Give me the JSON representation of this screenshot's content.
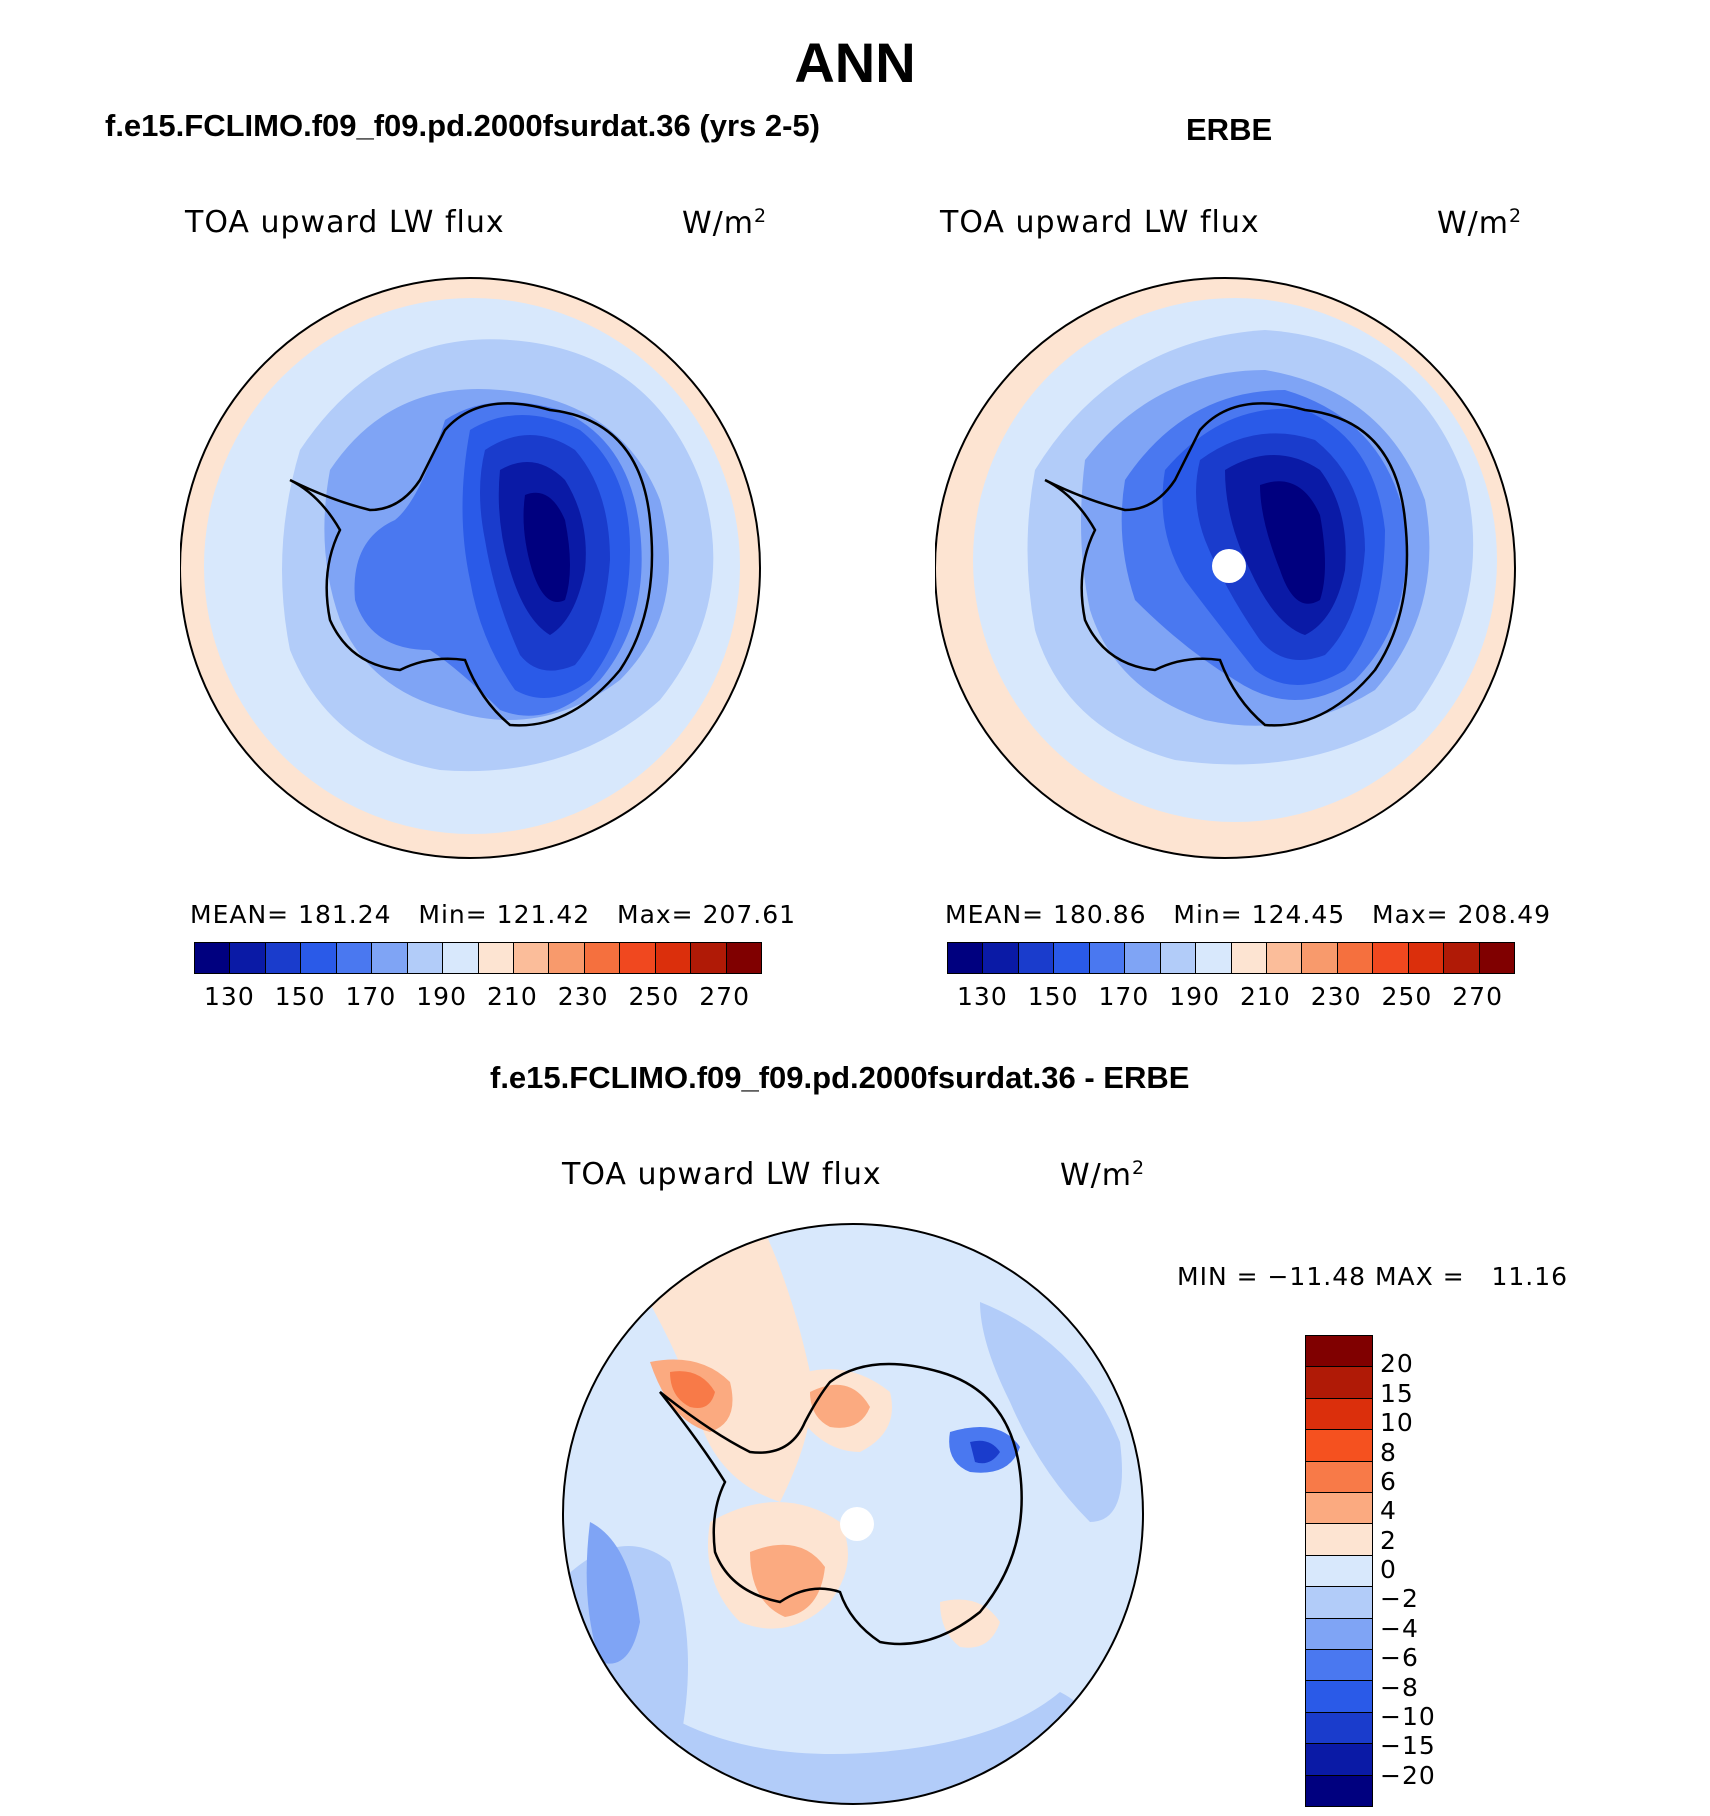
{
  "page": {
    "season": "ANN",
    "case_title": "f.e15.FCLIMO.f09_f09.pd.2000fsurdat.36 (yrs 2-5)",
    "obs_title": "ERBE",
    "diff_title": "f.e15.FCLIMO.f09_f09.pd.2000fsurdat.36 - ERBE"
  },
  "panels": [
    {
      "variable": "TOA upward LW flux",
      "units": "W/m",
      "units_exp": "2",
      "mean_label": "MEAN=",
      "mean": "181.24",
      "min_label": "Min=",
      "min": "121.42",
      "max_label": "Max=",
      "max": "207.61"
    },
    {
      "variable": "TOA upward LW flux",
      "units": "W/m",
      "units_exp": "2",
      "mean_label": "MEAN=",
      "mean": "180.86",
      "min_label": "Min=",
      "min": "124.45",
      "max_label": "Max=",
      "max": "208.49"
    }
  ],
  "diff_panel": {
    "variable": "TOA upward LW flux",
    "units": "W/m",
    "units_exp": "2",
    "minmax_text": "MIN = −11.48 MAX =   11.16"
  },
  "colorbar_abs": {
    "tick_labels": [
      "130",
      "150",
      "170",
      "190",
      "210",
      "230",
      "250",
      "270"
    ],
    "colors": [
      "#00007f",
      "#0a1aa6",
      "#1a3ccc",
      "#2a5ae8",
      "#4a78f0",
      "#7fa4f5",
      "#b2ccf9",
      "#d8e8fc",
      "#fde4d2",
      "#fbbd9a",
      "#f89a6c",
      "#f5703e",
      "#f0481f",
      "#db2f0c",
      "#b01a06",
      "#800000"
    ]
  },
  "colorbar_diff": {
    "tick_labels": [
      "20",
      "15",
      "10",
      "8",
      "6",
      "4",
      "2",
      "0",
      "−2",
      "−4",
      "−6",
      "−8",
      "−10",
      "−15",
      "−20"
    ],
    "colors": [
      "#800000",
      "#b01a06",
      "#db2f0c",
      "#f5511f",
      "#f87a48",
      "#fbaa80",
      "#fde4d2",
      "#d8e8fc",
      "#b2ccf9",
      "#7fa4f5",
      "#4a78f0",
      "#2a5ae8",
      "#1a3ccc",
      "#0a1aa6",
      "#00007f"
    ]
  },
  "colors": {
    "ocean_near": "#d8e8fc",
    "ocean_mid": "#b2ccf9",
    "land_edge": "#7fa4f5",
    "interior": "#2a5ae8",
    "core": "#00007f",
    "warm_edge": "#fde4d2"
  }
}
